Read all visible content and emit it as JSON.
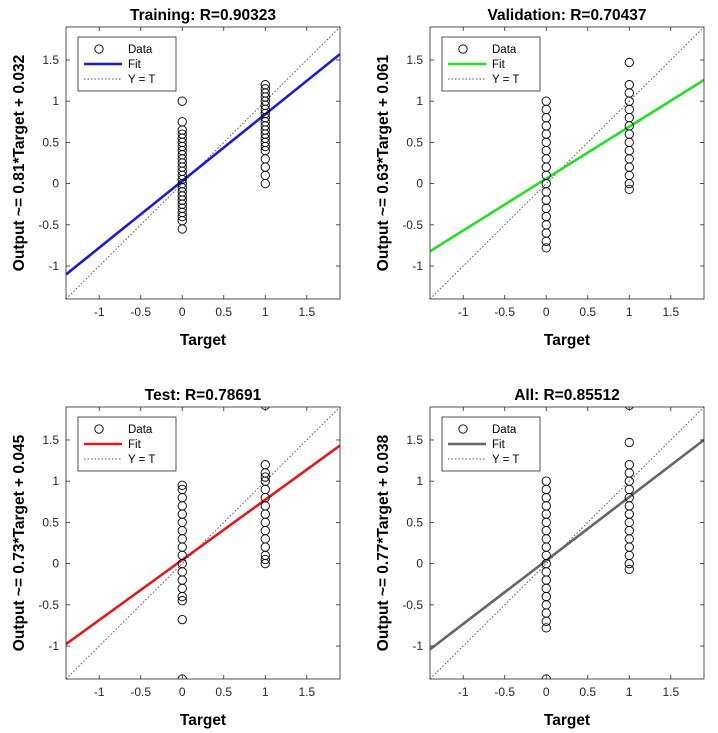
{
  "figure": {
    "background": "#ffffff"
  },
  "chart_data": [
    {
      "type": "scatter",
      "title": "Training: R=0.90323",
      "xlabel": "Target",
      "ylabel": "Output ~= 0.81*Target + 0.032",
      "xlim": [
        -1.4,
        1.9
      ],
      "ylim": [
        -1.4,
        1.9
      ],
      "xticks": [
        -1,
        -0.5,
        0,
        0.5,
        1,
        1.5
      ],
      "yticks": [
        -1,
        -0.5,
        0,
        0.5,
        1,
        1.5
      ],
      "grid": false,
      "legend": {
        "placement": "top-left",
        "entries": [
          "Data",
          "Fit",
          "Y = T"
        ]
      },
      "fit": {
        "slope": 0.81,
        "intercept": 0.032,
        "color": "#1a1adb"
      },
      "data_series": [
        {
          "x": 0,
          "y": [
            -0.55,
            -0.45,
            -0.4,
            -0.35,
            -0.3,
            -0.25,
            -0.2,
            -0.15,
            -0.1,
            -0.05,
            0,
            0.05,
            0.1,
            0.15,
            0.2,
            0.25,
            0.3,
            0.35,
            0.4,
            0.45,
            0.5,
            0.55,
            0.6,
            0.65,
            0.75,
            1.0
          ]
        },
        {
          "x": 1,
          "y": [
            0.0,
            0.1,
            0.2,
            0.3,
            0.4,
            0.45,
            0.5,
            0.55,
            0.6,
            0.65,
            0.7,
            0.75,
            0.8,
            0.85,
            0.9,
            0.95,
            1.0,
            1.05,
            1.1,
            1.15,
            1.2
          ]
        }
      ]
    },
    {
      "type": "scatter",
      "title": "Validation: R=0.70437",
      "xlabel": "Target",
      "ylabel": "Output ~= 0.63*Target + 0.061",
      "xlim": [
        -1.4,
        1.9
      ],
      "ylim": [
        -1.4,
        1.9
      ],
      "xticks": [
        -1,
        -0.5,
        0,
        0.5,
        1,
        1.5
      ],
      "yticks": [
        -1,
        -0.5,
        0,
        0.5,
        1,
        1.5
      ],
      "grid": false,
      "legend": {
        "placement": "top-left",
        "entries": [
          "Data",
          "Fit",
          "Y = T"
        ]
      },
      "fit": {
        "slope": 0.63,
        "intercept": 0.061,
        "color": "#22e022"
      },
      "data_series": [
        {
          "x": 0,
          "y": [
            -0.78,
            -0.7,
            -0.6,
            -0.5,
            -0.4,
            -0.3,
            -0.2,
            -0.1,
            0,
            0.1,
            0.2,
            0.3,
            0.4,
            0.5,
            0.6,
            0.7,
            0.8,
            0.9,
            1.0
          ]
        },
        {
          "x": 1,
          "y": [
            -0.07,
            0.0,
            0.1,
            0.2,
            0.3,
            0.4,
            0.5,
            0.6,
            0.7,
            0.8,
            0.9,
            1.0,
            1.1,
            1.2,
            1.47
          ]
        }
      ]
    },
    {
      "type": "scatter",
      "title": "Test: R=0.78691",
      "xlabel": "Target",
      "ylabel": "Output ~= 0.73*Target + 0.045",
      "xlim": [
        -1.4,
        1.9
      ],
      "ylim": [
        -1.4,
        1.9
      ],
      "xticks": [
        -1,
        -0.5,
        0,
        0.5,
        1,
        1.5
      ],
      "yticks": [
        -1,
        -0.5,
        0,
        0.5,
        1,
        1.5
      ],
      "grid": false,
      "legend": {
        "placement": "top-left",
        "entries": [
          "Data",
          "Fit",
          "Y = T"
        ]
      },
      "fit": {
        "slope": 0.73,
        "intercept": 0.045,
        "color": "#e01a1a"
      },
      "data_series": [
        {
          "x": 0,
          "y": [
            -1.4,
            -0.68,
            -0.45,
            -0.4,
            -0.3,
            -0.2,
            -0.1,
            0,
            0.1,
            0.2,
            0.3,
            0.4,
            0.5,
            0.6,
            0.7,
            0.8,
            0.9,
            0.95
          ]
        },
        {
          "x": 1,
          "y": [
            0.0,
            0.05,
            0.1,
            0.2,
            0.3,
            0.4,
            0.5,
            0.6,
            0.7,
            0.8,
            0.9,
            1.0,
            1.05,
            1.1,
            1.2,
            1.92
          ]
        }
      ]
    },
    {
      "type": "scatter",
      "title": "All: R=0.85512",
      "xlabel": "Target",
      "ylabel": "Output ~= 0.77*Target + 0.038",
      "xlim": [
        -1.4,
        1.9
      ],
      "ylim": [
        -1.4,
        1.9
      ],
      "xticks": [
        -1,
        -0.5,
        0,
        0.5,
        1,
        1.5
      ],
      "yticks": [
        -1,
        -0.5,
        0,
        0.5,
        1,
        1.5
      ],
      "grid": false,
      "legend": {
        "placement": "top-left",
        "entries": [
          "Data",
          "Fit",
          "Y = T"
        ]
      },
      "fit": {
        "slope": 0.77,
        "intercept": 0.038,
        "color": "#666666"
      },
      "data_series": [
        {
          "x": 0,
          "y": [
            -1.4,
            -0.78,
            -0.7,
            -0.6,
            -0.5,
            -0.4,
            -0.3,
            -0.2,
            -0.1,
            0,
            0.1,
            0.2,
            0.3,
            0.4,
            0.5,
            0.6,
            0.7,
            0.8,
            0.9,
            1.0
          ]
        },
        {
          "x": 1,
          "y": [
            -0.07,
            0.0,
            0.1,
            0.2,
            0.3,
            0.4,
            0.5,
            0.6,
            0.7,
            0.8,
            0.9,
            1.0,
            1.1,
            1.2,
            1.47,
            1.92
          ]
        }
      ]
    }
  ]
}
